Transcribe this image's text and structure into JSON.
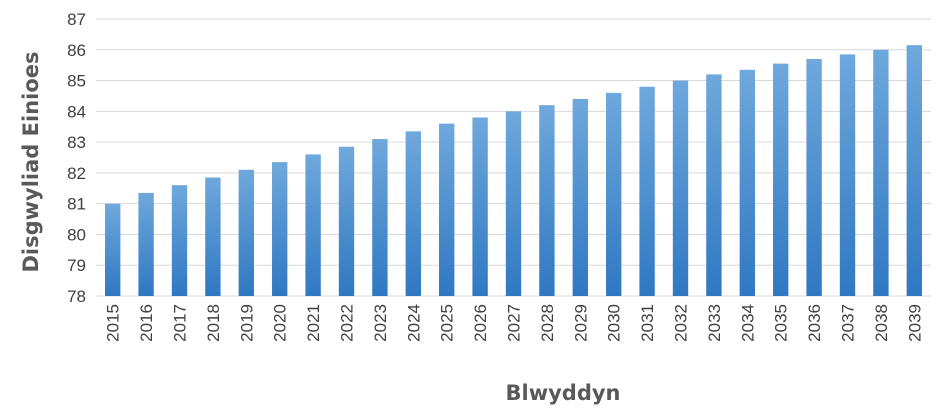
{
  "chart_data": {
    "type": "bar",
    "title": "",
    "xlabel": "Blwyddyn",
    "ylabel": "Disgwyliad Einioes",
    "ylim": [
      78,
      87
    ],
    "yticks": [
      78,
      79,
      80,
      81,
      82,
      83,
      84,
      85,
      86,
      87
    ],
    "grid": true,
    "legend": "none",
    "bar_color": "#5b9bd5",
    "categories": [
      "2015",
      "2016",
      "2017",
      "2018",
      "2019",
      "2020",
      "2021",
      "2022",
      "2023",
      "2024",
      "2025",
      "2026",
      "2027",
      "2028",
      "2029",
      "2030",
      "2031",
      "2032",
      "2033",
      "2034",
      "2035",
      "2036",
      "2037",
      "2038",
      "2039"
    ],
    "values": [
      81.0,
      81.35,
      81.6,
      81.85,
      82.1,
      82.35,
      82.6,
      82.85,
      83.1,
      83.35,
      83.6,
      83.8,
      84.0,
      84.2,
      84.4,
      84.6,
      84.8,
      85.0,
      85.2,
      85.35,
      85.55,
      85.7,
      85.85,
      86.0,
      86.15
    ]
  }
}
